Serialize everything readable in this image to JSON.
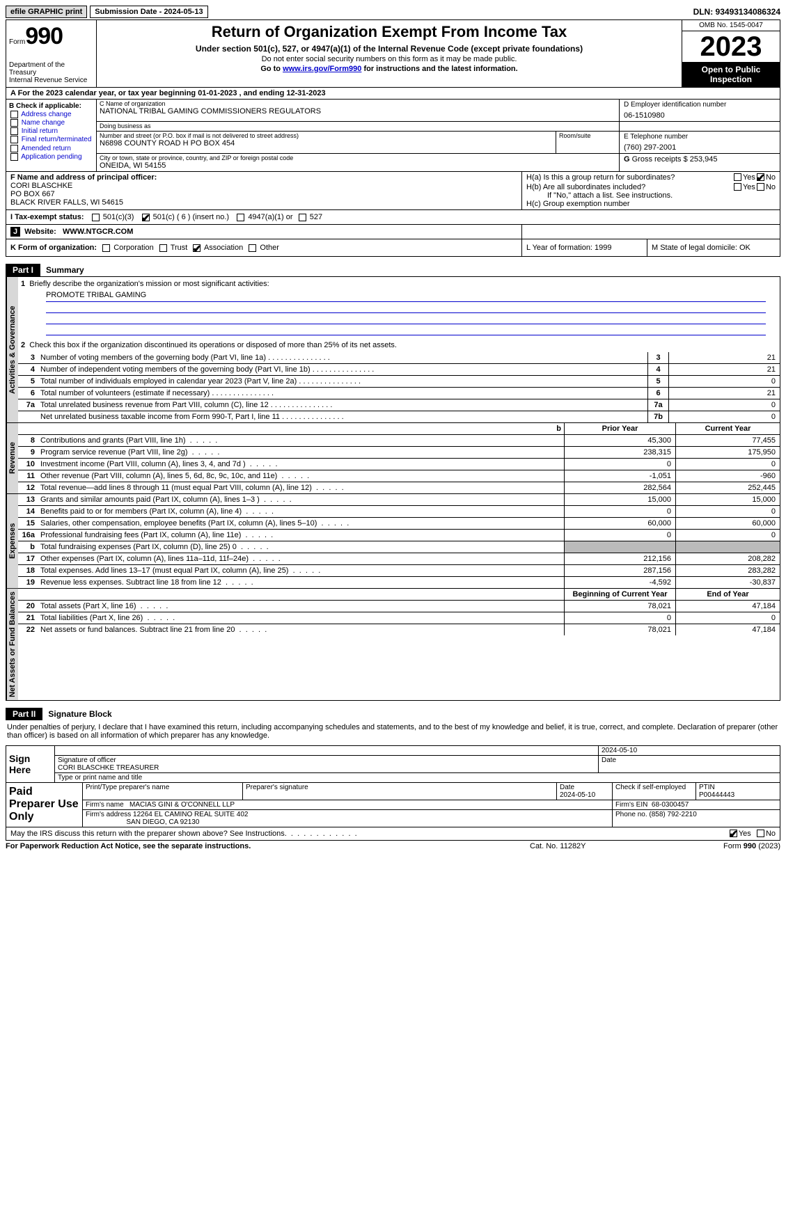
{
  "topbar": {
    "efile": "efile GRAPHIC print",
    "submission": "Submission Date - 2024-05-13",
    "dln": "DLN: 93493134086324"
  },
  "header": {
    "form_prefix": "Form",
    "form_no": "990",
    "dept": "Department of the Treasury",
    "irs": "Internal Revenue Service",
    "title": "Return of Organization Exempt From Income Tax",
    "sub1": "Under section 501(c), 527, or 4947(a)(1) of the Internal Revenue Code (except private foundations)",
    "sub2": "Do not enter social security numbers on this form as it may be made public.",
    "sub3_pre": "Go to ",
    "sub3_link": "www.irs.gov/Form990",
    "sub3_post": " for instructions and the latest information.",
    "omb": "OMB No. 1545-0047",
    "year": "2023",
    "open": "Open to Public Inspection"
  },
  "row_a": "A  For the 2023 calendar year, or tax year beginning 01-01-2023   , and ending 12-31-2023",
  "b": {
    "hdr": "B Check if applicable:",
    "opts": [
      "Address change",
      "Name change",
      "Initial return",
      "Final return/terminated",
      "Amended return",
      "Application pending"
    ]
  },
  "c": {
    "name_lab": "C Name of organization",
    "name": "NATIONAL TRIBAL GAMING COMMISSIONERS REGULATORS",
    "dba_lab": "Doing business as",
    "dba": "",
    "street_lab": "Number and street (or P.O. box if mail is not delivered to street address)",
    "street": "N6898 COUNTY ROAD H PO BOX 454",
    "room_lab": "Room/suite",
    "city_lab": "City or town, state or province, country, and ZIP or foreign postal code",
    "city": "ONEIDA, WI  54155"
  },
  "d": {
    "lab": "D Employer identification number",
    "val": "06-1510980"
  },
  "e": {
    "lab": "E Telephone number",
    "val": "(760) 297-2001"
  },
  "g": {
    "lab": "G",
    "text": "Gross receipts $ 253,945"
  },
  "f": {
    "lab": "F  Name and address of principal officer:",
    "name": "CORI BLASCHKE",
    "addr1": "PO BOX 667",
    "addr2": "BLACK RIVER FALLS, WI  54615"
  },
  "h": {
    "a": "H(a)  Is this a group return for subordinates?",
    "b": "H(b)  Are all subordinates included?",
    "b_note": "If \"No,\" attach a list. See instructions.",
    "c": "H(c)  Group exemption number"
  },
  "i": {
    "lab": "I   Tax-exempt status:",
    "o1": "501(c)(3)",
    "o2": "501(c) ( 6 ) (insert no.)",
    "o3": "4947(a)(1) or",
    "o4": "527"
  },
  "j": {
    "lab": "J",
    "text": "Website:",
    "val": "WWW.NTGCR.COM"
  },
  "k": {
    "lab": "K Form of organization:",
    "opts": [
      "Corporation",
      "Trust",
      "Association",
      "Other"
    ]
  },
  "l": "L Year of formation: 1999",
  "m": "M State of legal domicile: OK",
  "parts": {
    "p1": "Part I",
    "p1t": "Summary",
    "p2": "Part II",
    "p2t": "Signature Block"
  },
  "vtabs": {
    "gov": "Activities & Governance",
    "rev": "Revenue",
    "exp": "Expenses",
    "net": "Net Assets or Fund Balances"
  },
  "summary": {
    "q1": "Briefly describe the organization's mission or most significant activities:",
    "mission": "PROMOTE TRIBAL GAMING",
    "q2": "Check this box       if the organization discontinued its operations or disposed of more than 25% of its net assets.",
    "rows_gov": [
      {
        "n": "3",
        "t": "Number of voting members of the governing body (Part VI, line 1a)",
        "box": "3",
        "v": "21"
      },
      {
        "n": "4",
        "t": "Number of independent voting members of the governing body (Part VI, line 1b)",
        "box": "4",
        "v": "21"
      },
      {
        "n": "5",
        "t": "Total number of individuals employed in calendar year 2023 (Part V, line 2a)",
        "box": "5",
        "v": "0"
      },
      {
        "n": "6",
        "t": "Total number of volunteers (estimate if necessary)",
        "box": "6",
        "v": "21"
      },
      {
        "n": "7a",
        "t": "Total unrelated business revenue from Part VIII, column (C), line 12",
        "box": "7a",
        "v": "0"
      },
      {
        "n": "",
        "t": "Net unrelated business taxable income from Form 990-T, Part I, line 11",
        "box": "7b",
        "v": "0"
      }
    ],
    "hdr_prior": "Prior Year",
    "hdr_curr": "Current Year",
    "rows_rev": [
      {
        "n": "8",
        "t": "Contributions and grants (Part VIII, line 1h)",
        "p": "45,300",
        "c": "77,455"
      },
      {
        "n": "9",
        "t": "Program service revenue (Part VIII, line 2g)",
        "p": "238,315",
        "c": "175,950"
      },
      {
        "n": "10",
        "t": "Investment income (Part VIII, column (A), lines 3, 4, and 7d )",
        "p": "0",
        "c": "0"
      },
      {
        "n": "11",
        "t": "Other revenue (Part VIII, column (A), lines 5, 6d, 8c, 9c, 10c, and 11e)",
        "p": "-1,051",
        "c": "-960"
      },
      {
        "n": "12",
        "t": "Total revenue—add lines 8 through 11 (must equal Part VIII, column (A), line 12)",
        "p": "282,564",
        "c": "252,445"
      }
    ],
    "rows_exp": [
      {
        "n": "13",
        "t": "Grants and similar amounts paid (Part IX, column (A), lines 1–3 )",
        "p": "15,000",
        "c": "15,000"
      },
      {
        "n": "14",
        "t": "Benefits paid to or for members (Part IX, column (A), line 4)",
        "p": "0",
        "c": "0"
      },
      {
        "n": "15",
        "t": "Salaries, other compensation, employee benefits (Part IX, column (A), lines 5–10)",
        "p": "60,000",
        "c": "60,000"
      },
      {
        "n": "16a",
        "t": "Professional fundraising fees (Part IX, column (A), line 11e)",
        "p": "0",
        "c": "0"
      },
      {
        "n": "b",
        "t": "Total fundraising expenses (Part IX, column (D), line 25) 0",
        "p": "",
        "c": "",
        "grey": true
      },
      {
        "n": "17",
        "t": "Other expenses (Part IX, column (A), lines 11a–11d, 11f–24e)",
        "p": "212,156",
        "c": "208,282"
      },
      {
        "n": "18",
        "t": "Total expenses. Add lines 13–17 (must equal Part IX, column (A), line 25)",
        "p": "287,156",
        "c": "283,282"
      },
      {
        "n": "19",
        "t": "Revenue less expenses. Subtract line 18 from line 12",
        "p": "-4,592",
        "c": "-30,837"
      }
    ],
    "hdr_beg": "Beginning of Current Year",
    "hdr_end": "End of Year",
    "rows_net": [
      {
        "n": "20",
        "t": "Total assets (Part X, line 16)",
        "p": "78,021",
        "c": "47,184"
      },
      {
        "n": "21",
        "t": "Total liabilities (Part X, line 26)",
        "p": "0",
        "c": "0"
      },
      {
        "n": "22",
        "t": "Net assets or fund balances. Subtract line 21 from line 20",
        "p": "78,021",
        "c": "47,184"
      }
    ]
  },
  "sig": {
    "intro": "Under penalties of perjury, I declare that I have examined this return, including accompanying schedules and statements, and to the best of my knowledge and belief, it is true, correct, and complete. Declaration of preparer (other than officer) is based on all information of which preparer has any knowledge.",
    "sign_here": "Sign Here",
    "date1": "2024-05-10",
    "sig_officer_lab": "Signature of officer",
    "officer": "CORI BLASCHKE  TREASURER",
    "type_lab": "Type or print name and title",
    "date_lab": "Date",
    "paid": "Paid Preparer Use Only",
    "prep_name_lab": "Print/Type preparer's name",
    "prep_sig_lab": "Preparer's signature",
    "prep_date": "2024-05-10",
    "self_emp": "Check         if self-employed",
    "ptin_lab": "PTIN",
    "ptin": "P00444443",
    "firm_name_lab": "Firm's name",
    "firm_name": "MACIAS GINI & O'CONNELL LLP",
    "firm_ein_lab": "Firm's EIN",
    "firm_ein": "68-0300457",
    "firm_addr_lab": "Firm's address",
    "firm_addr1": "12264 EL CAMINO REAL SUITE 402",
    "firm_addr2": "SAN DIEGO, CA  92130",
    "phone_lab": "Phone no.",
    "phone": "(858) 792-2210",
    "discuss": "May the IRS discuss this return with the preparer shown above? See Instructions."
  },
  "footer": {
    "l": "For Paperwork Reduction Act Notice, see the separate instructions.",
    "c": "Cat. No. 11282Y",
    "r_pre": "Form ",
    "r_b": "990",
    "r_post": " (2023)"
  },
  "yes": "Yes",
  "no": "No"
}
